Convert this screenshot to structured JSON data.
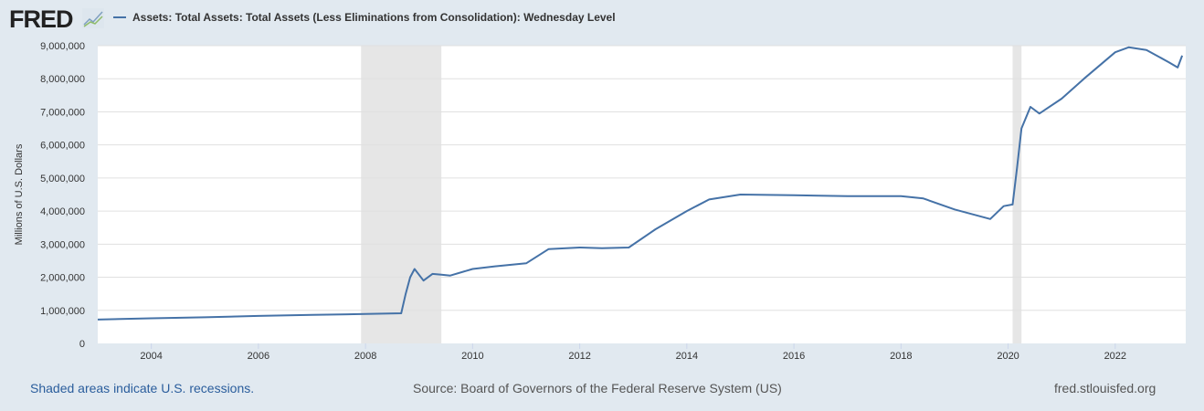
{
  "header": {
    "logo": "FRED",
    "legend_label": "Assets: Total Assets: Total Assets (Less Eliminations from Consolidation): Wednesday Level"
  },
  "footer": {
    "recession_note": "Shaded areas indicate U.S. recessions.",
    "source": "Source: Board of Governors of the Federal Reserve System (US)",
    "site": "fred.stlouisfed.org"
  },
  "colors": {
    "line": "#4572a7",
    "recession": "#e6e6e6",
    "background": "#e1e9f0"
  },
  "chart_data": {
    "type": "line",
    "title": "",
    "ylabel": "Millions of U.S. Dollars",
    "xlabel": "",
    "xlim": [
      "2003-01",
      "2023-03"
    ],
    "ylim": [
      0,
      9000000
    ],
    "grid": true,
    "yticks": [
      0,
      1000000,
      2000000,
      3000000,
      4000000,
      5000000,
      6000000,
      7000000,
      8000000,
      9000000
    ],
    "ytick_labels": [
      "0",
      "1,000,000",
      "2,000,000",
      "3,000,000",
      "4,000,000",
      "5,000,000",
      "6,000,000",
      "7,000,000",
      "8,000,000",
      "9,000,000"
    ],
    "xtick_labels": [
      "2004",
      "2006",
      "2008",
      "2010",
      "2012",
      "2014",
      "2016",
      "2018",
      "2020",
      "2022"
    ],
    "recessions": [
      [
        "2007-12",
        "2009-06"
      ],
      [
        "2020-02",
        "2020-04"
      ]
    ],
    "series": [
      {
        "name": "Assets: Total Assets: Total Assets (Less Eliminations from Consolidation): Wednesday Level",
        "points": [
          [
            "2003-01",
            720000
          ],
          [
            "2004-01",
            760000
          ],
          [
            "2005-01",
            790000
          ],
          [
            "2006-01",
            830000
          ],
          [
            "2007-01",
            860000
          ],
          [
            "2008-01",
            890000
          ],
          [
            "2008-09",
            910000
          ],
          [
            "2008-10",
            1500000
          ],
          [
            "2008-11",
            2000000
          ],
          [
            "2008-12",
            2250000
          ],
          [
            "2009-02",
            1900000
          ],
          [
            "2009-04",
            2100000
          ],
          [
            "2009-06",
            2080000
          ],
          [
            "2009-08",
            2050000
          ],
          [
            "2010-01",
            2250000
          ],
          [
            "2010-06",
            2330000
          ],
          [
            "2011-01",
            2420000
          ],
          [
            "2011-06",
            2850000
          ],
          [
            "2012-01",
            2900000
          ],
          [
            "2012-06",
            2880000
          ],
          [
            "2012-12",
            2900000
          ],
          [
            "2013-06",
            3450000
          ],
          [
            "2014-01",
            4000000
          ],
          [
            "2014-06",
            4350000
          ],
          [
            "2015-01",
            4500000
          ],
          [
            "2016-01",
            4480000
          ],
          [
            "2017-01",
            4450000
          ],
          [
            "2018-01",
            4450000
          ],
          [
            "2018-06",
            4380000
          ],
          [
            "2019-01",
            4050000
          ],
          [
            "2019-09",
            3760000
          ],
          [
            "2019-12",
            4150000
          ],
          [
            "2020-02",
            4200000
          ],
          [
            "2020-03",
            5300000
          ],
          [
            "2020-04",
            6500000
          ],
          [
            "2020-06",
            7150000
          ],
          [
            "2020-08",
            6950000
          ],
          [
            "2021-01",
            7400000
          ],
          [
            "2021-06",
            8000000
          ],
          [
            "2022-01",
            8800000
          ],
          [
            "2022-04",
            8950000
          ],
          [
            "2022-08",
            8870000
          ],
          [
            "2023-01",
            8500000
          ],
          [
            "2023-03",
            8340000
          ],
          [
            "2023-04",
            8700000
          ]
        ]
      }
    ]
  }
}
